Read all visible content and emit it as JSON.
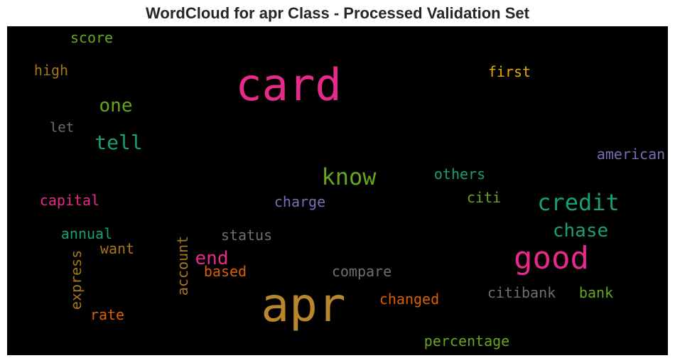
{
  "title": "WordCloud for apr Class - Processed Validation Set",
  "palette": {
    "pink": "#e7298a",
    "gold": "#b8862c",
    "green": "#66a61e",
    "teal": "#1b9e77",
    "purple": "#7570b3",
    "gray": "#6f6f6f",
    "orange": "#d95f02",
    "brown": "#a6761d",
    "yellow": "#e6ab02",
    "background": "#000000"
  },
  "words": [
    {
      "text": "card"
    },
    {
      "text": "apr"
    },
    {
      "text": "good"
    },
    {
      "text": "know"
    },
    {
      "text": "credit"
    },
    {
      "text": "chase"
    },
    {
      "text": "tell"
    },
    {
      "text": "one"
    },
    {
      "text": "end"
    },
    {
      "text": "score"
    },
    {
      "text": "high"
    },
    {
      "text": "first"
    },
    {
      "text": "let"
    },
    {
      "text": "american"
    },
    {
      "text": "others"
    },
    {
      "text": "capital"
    },
    {
      "text": "charge"
    },
    {
      "text": "citi"
    },
    {
      "text": "annual"
    },
    {
      "text": "status"
    },
    {
      "text": "want"
    },
    {
      "text": "account"
    },
    {
      "text": "express"
    },
    {
      "text": "based"
    },
    {
      "text": "compare"
    },
    {
      "text": "citibank"
    },
    {
      "text": "bank"
    },
    {
      "text": "changed"
    },
    {
      "text": "rate"
    },
    {
      "text": "percentage"
    }
  ]
}
